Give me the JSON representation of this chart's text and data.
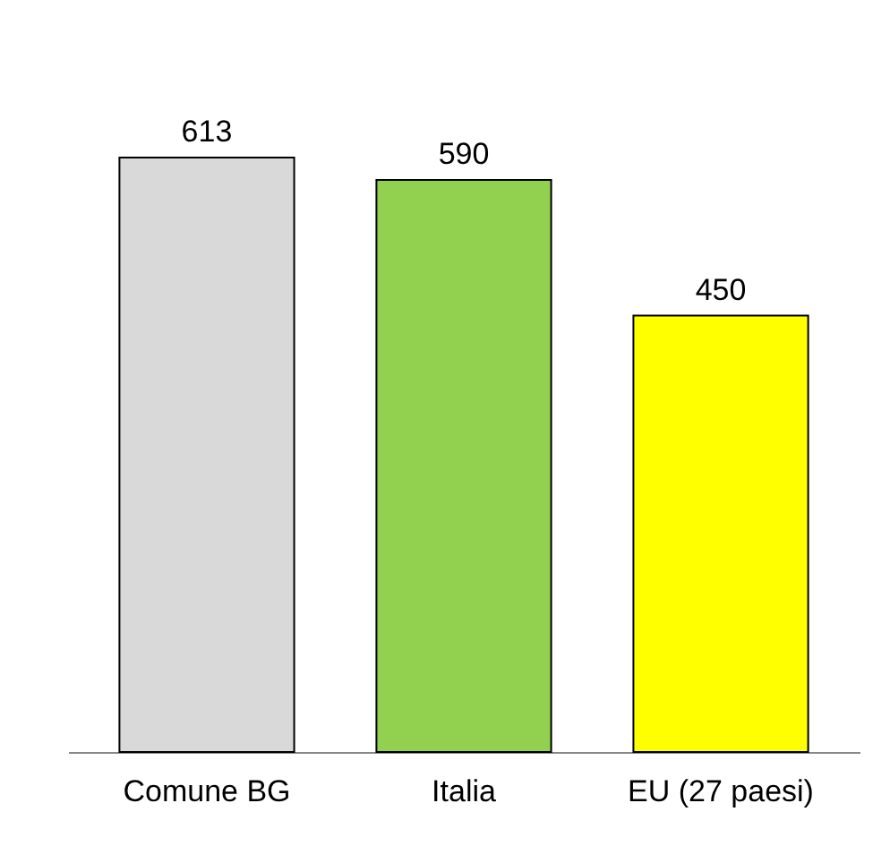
{
  "chart_data": {
    "type": "bar",
    "categories": [
      "Comune BG",
      "Italia",
      "EU (27 paesi)"
    ],
    "values": [
      613,
      590,
      450
    ],
    "colors": [
      "#d9d9d9",
      "#92d050",
      "#ffff00"
    ],
    "data_labels": true
  }
}
